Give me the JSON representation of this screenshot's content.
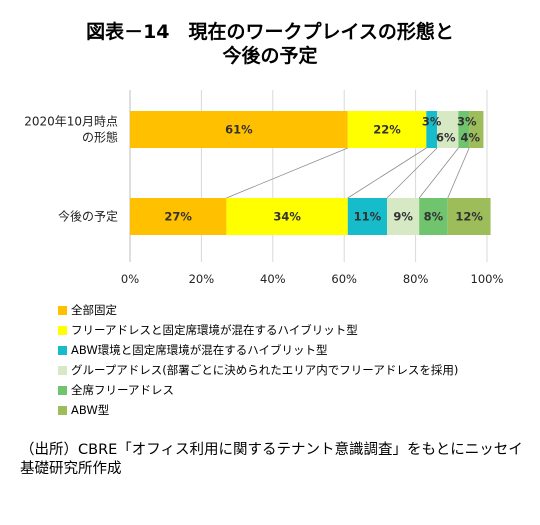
{
  "chart_data": {
    "type": "bar",
    "orientation": "horizontal",
    "stacked": true,
    "title_line1": "図表－14　現在のワークプレイスの形態と",
    "title_line2": "今後の予定",
    "categories": [
      "2020年10月時点の形態",
      "今後の予定"
    ],
    "category_label_lines": [
      [
        "2020年10月時点",
        "の形態"
      ],
      [
        "今後の予定"
      ]
    ],
    "series": [
      {
        "name": "全部固定",
        "values": [
          61,
          27
        ],
        "labels": [
          "61%",
          "27%"
        ],
        "color": "#FFC000"
      },
      {
        "name": "フリーアドレスと固定席環境が混在するハイブリット型",
        "values": [
          22,
          34
        ],
        "labels": [
          "22%",
          "34%"
        ],
        "color": "#FFFF00"
      },
      {
        "name": "ABW環境と固定席環境が混在するハイブリット型",
        "values": [
          3,
          11
        ],
        "labels": [
          "3%",
          "11%"
        ],
        "color": "#17BCCB"
      },
      {
        "name": "グループアドレス(部署ごとに決められたエリア内でフリーアドレスを採用)",
        "values": [
          6,
          9
        ],
        "labels": [
          "6%",
          "9%"
        ],
        "color": "#D6E8C4"
      },
      {
        "name": "全席フリーアドレス",
        "values": [
          3,
          8
        ],
        "labels": [
          "3%",
          "8%"
        ],
        "color": "#70C46E"
      },
      {
        "name": "ABW型",
        "values": [
          4,
          12
        ],
        "labels": [
          "4%",
          "12%"
        ],
        "color": "#9DBD5A"
      }
    ],
    "xlim": [
      0,
      100
    ],
    "xticks": [
      "0%",
      "20%",
      "40%",
      "60%",
      "80%",
      "100%"
    ],
    "grid": true,
    "legend_position": "bottom"
  },
  "source_text": "（出所）CBRE「オフィス利用に関するテナント意識調査」をもとにニッセイ基礎研究所作成"
}
